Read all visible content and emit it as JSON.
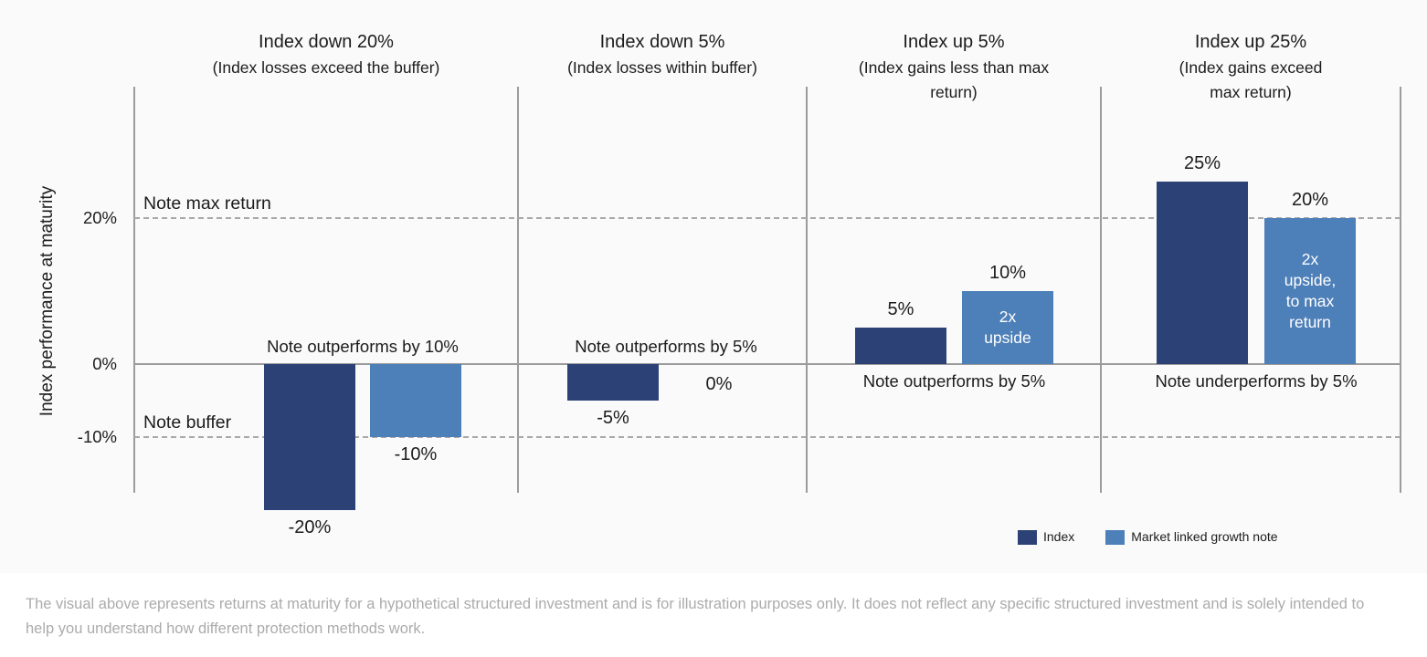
{
  "colors": {
    "index": "#2c4276",
    "note": "#4d7fb8",
    "axis_line": "#9b9b9b",
    "dashed_line": "#a8a8a8",
    "chart_background": "#fafafa",
    "page_background": "#ffffff",
    "text": "#1c1c1e",
    "inner_label": "#ffffff",
    "footnote_text": "#ababab"
  },
  "legend": {
    "items": [
      {
        "label": "Index",
        "color_key": "index"
      },
      {
        "label": "Market linked growth note",
        "color_key": "note"
      }
    ]
  },
  "footnote": "The visual above represents returns at maturity for a hypothetical structured investment and is for illustration purposes only. It does not reflect any specific structured investment and is solely intended to help you understand how different protection methods work.",
  "chart_data": {
    "type": "bar",
    "title": "",
    "xlabel": "",
    "ylabel": "Index performance at maturity",
    "ylim": [
      -28,
      38
    ],
    "grid": false,
    "legend_position": "bottom-right",
    "yticks": [
      {
        "value": 20,
        "label": "20%"
      },
      {
        "value": 0,
        "label": "0%"
      },
      {
        "value": -10,
        "label": "-10%"
      }
    ],
    "reference_lines": [
      {
        "value": 20,
        "label": "Note max return",
        "style": "dashed"
      },
      {
        "value": -10,
        "label": "Note buffer",
        "style": "dashed"
      }
    ],
    "series": [
      "Index",
      "Market linked growth note"
    ],
    "panels": [
      {
        "title": "Index down 20%",
        "subtitle": "(Index losses exceed the buffer)",
        "bars": [
          {
            "series": "Index",
            "value": -20,
            "label": "-20%"
          },
          {
            "series": "Market linked growth note",
            "value": -10,
            "label": "-10%"
          }
        ],
        "annotation": {
          "text": "Note outperforms by 10%",
          "side": "above"
        }
      },
      {
        "title": "Index down 5%",
        "subtitle": "(Index losses within buffer)",
        "bars": [
          {
            "series": "Index",
            "value": -5,
            "label": "-5%"
          },
          {
            "series": "Market linked growth note",
            "value": 0,
            "label": "0%"
          }
        ],
        "annotation": {
          "text": "Note outperforms by 5%",
          "side": "above"
        }
      },
      {
        "title": "Index up 5%",
        "subtitle": "(Index gains less than max\nreturn)",
        "bars": [
          {
            "series": "Index",
            "value": 5,
            "label": "5%"
          },
          {
            "series": "Market linked growth note",
            "value": 10,
            "label": "10%",
            "inner_label": "2x\nupside"
          }
        ],
        "annotation": {
          "text": "Note outperforms by 5%",
          "side": "below"
        }
      },
      {
        "title": "Index up 25%",
        "subtitle": "(Index gains exceed\nmax return)",
        "bars": [
          {
            "series": "Index",
            "value": 25,
            "label": "25%"
          },
          {
            "series": "Market linked growth note",
            "value": 20,
            "label": "20%",
            "inner_label": "2x\nupside,\nto max\nreturn"
          }
        ],
        "annotation": {
          "text": "Note underperforms by 5%",
          "side": "below"
        }
      }
    ]
  }
}
